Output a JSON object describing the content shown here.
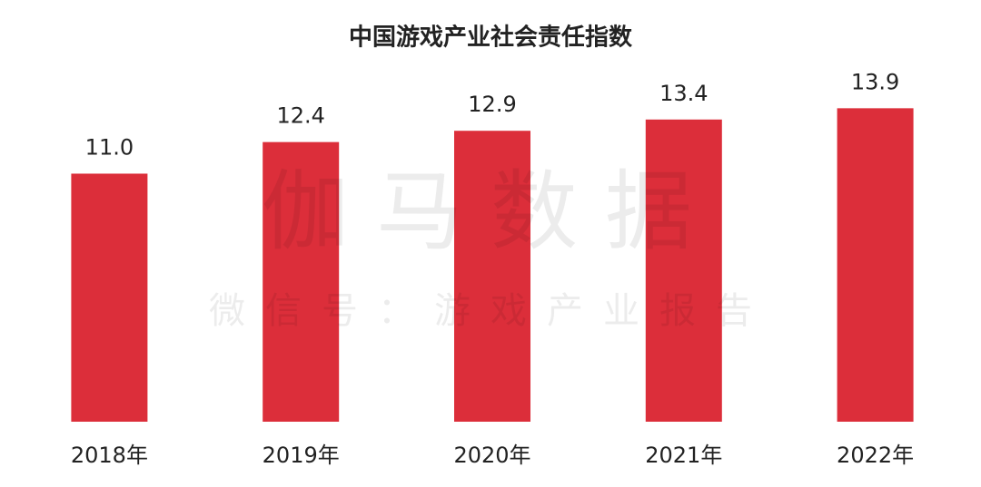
{
  "chart_data": {
    "type": "bar",
    "title": "中国游戏产业社会责任指数",
    "categories": [
      "2018年",
      "2019年",
      "2020年",
      "2021年",
      "2022年"
    ],
    "values": [
      11.0,
      12.4,
      12.9,
      13.4,
      13.9
    ],
    "value_labels": [
      "11.0",
      "12.4",
      "12.9",
      "13.4",
      "13.9"
    ],
    "color": "#dc2e3a",
    "ylim": [
      0,
      15
    ],
    "grid": false,
    "watermark": "伽马数据",
    "watermark_subtitle": "微信号：游戏产业报告"
  }
}
